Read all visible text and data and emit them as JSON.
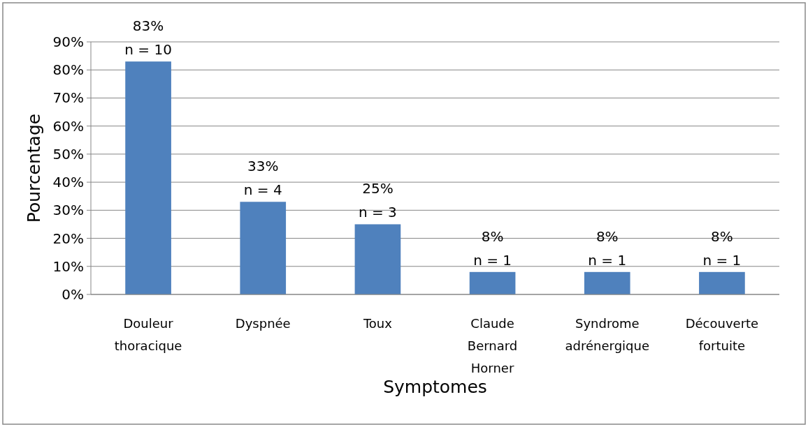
{
  "chart_data": {
    "type": "bar",
    "xlabel": "Symptomes",
    "ylabel": "Pourcentage",
    "categories": [
      "Douleur thoracique",
      "Dyspnée",
      "Toux",
      "Claude Bernard Horner",
      "Syndrome adrénergique",
      "Découverte fortuite"
    ],
    "values": [
      83,
      33,
      25,
      8,
      8,
      8
    ],
    "value_labels": [
      "83%\nn = 10",
      "33%\nn = 4",
      "25%\nn = 3",
      "8%\nn = 1",
      "8%\nn = 1",
      "8%\nn = 1"
    ],
    "color": "#4f81bd",
    "ylim": [
      0,
      90
    ],
    "yticks": [
      {
        "value": 0,
        "label": "0%"
      },
      {
        "value": 10,
        "label": "10%"
      },
      {
        "value": 20,
        "label": "20%"
      },
      {
        "value": 30,
        "label": "30%"
      },
      {
        "value": 40,
        "label": "40%"
      },
      {
        "value": 50,
        "label": "50%"
      },
      {
        "value": 60,
        "label": "60%"
      },
      {
        "value": 70,
        "label": "70%"
      },
      {
        "value": 80,
        "label": "80%"
      },
      {
        "value": 90,
        "label": "90%"
      }
    ],
    "grid": "y"
  }
}
